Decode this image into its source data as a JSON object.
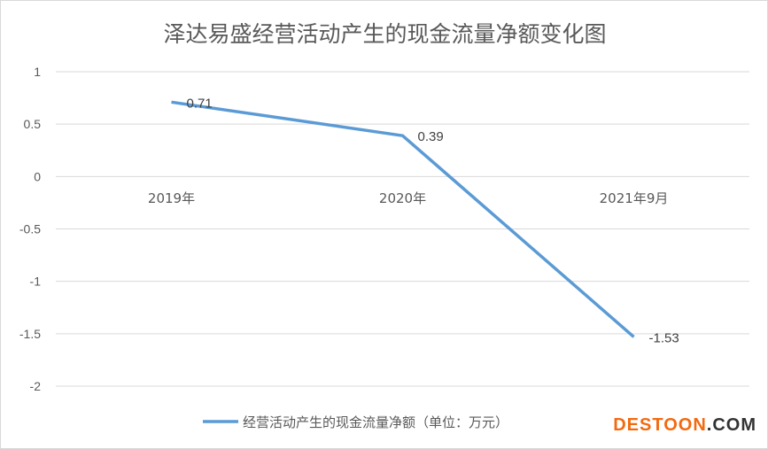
{
  "chart_data": {
    "type": "line",
    "title": "泽达易盛经营活动产生的现金流量净额变化图",
    "categories": [
      "2019年",
      "2020年",
      "2021年9月"
    ],
    "series": [
      {
        "name": "经营活动产生的现金流量净额（单位：万元）",
        "values": [
          0.71,
          0.39,
          -1.53
        ],
        "labels": [
          "0.71",
          "0.39",
          "-1.53"
        ],
        "color": "#5b9bd5"
      }
    ],
    "yticks": [
      "1",
      "0.5",
      "0",
      "-0.5",
      "-1",
      "-1.5",
      "-2"
    ],
    "ytick_values": [
      1,
      0.5,
      0,
      -0.5,
      -1,
      -1.5,
      -2
    ],
    "ylim": [
      -2,
      1
    ],
    "grid": true,
    "legend": "bottom",
    "xlabel": "",
    "ylabel": ""
  },
  "watermark": {
    "part1": "DESTOON",
    "part2": ".COM"
  }
}
